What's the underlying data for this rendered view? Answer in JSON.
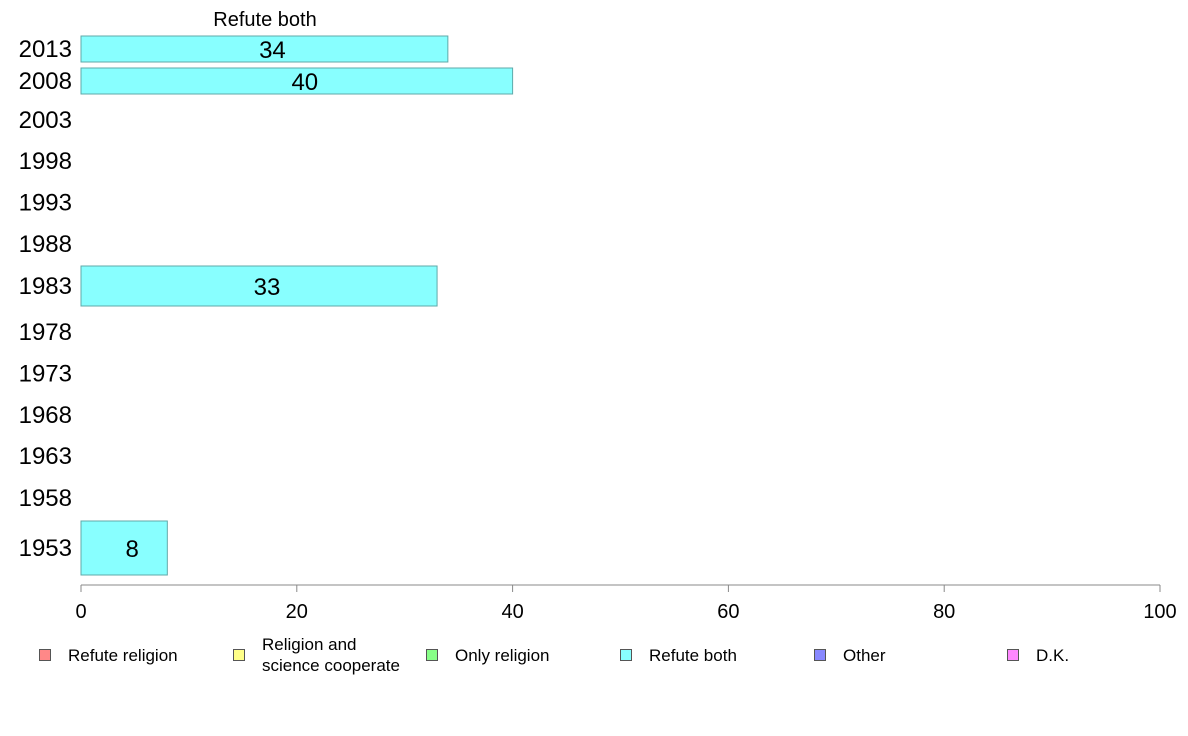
{
  "chart_data": {
    "type": "bar",
    "orientation": "horizontal",
    "title": "Refute both",
    "xlim": [
      0,
      100
    ],
    "xticks": [
      0,
      20,
      40,
      60,
      80,
      100
    ],
    "grid": false,
    "legend_position": "bottom",
    "categories": [
      "2013",
      "2008",
      "2003",
      "1998",
      "1993",
      "1988",
      "1983",
      "1978",
      "1973",
      "1968",
      "1963",
      "1958",
      "1953"
    ],
    "series": [
      {
        "name": "Refute both",
        "color": "#88ffff",
        "values": [
          34,
          40,
          null,
          null,
          null,
          null,
          33,
          null,
          null,
          null,
          null,
          null,
          8
        ]
      }
    ],
    "legend": [
      {
        "label": "Refute religion",
        "color": "#ff8888"
      },
      {
        "label": "Religion and\nscience cooperate",
        "color": "#ffff88"
      },
      {
        "label": "Only religion",
        "color": "#88ff88"
      },
      {
        "label": "Refute both",
        "color": "#88ffff"
      },
      {
        "label": "Other",
        "color": "#8888ff"
      },
      {
        "label": "D.K.",
        "color": "#ff88ff"
      }
    ]
  }
}
